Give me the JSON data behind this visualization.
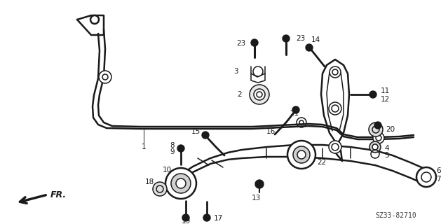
{
  "bg_color": "#ffffff",
  "line_color": "#1a1a1a",
  "fig_width": 6.39,
  "fig_height": 3.2,
  "dpi": 100,
  "diagram_code": "SZ33-82710",
  "fr_label": "FR."
}
